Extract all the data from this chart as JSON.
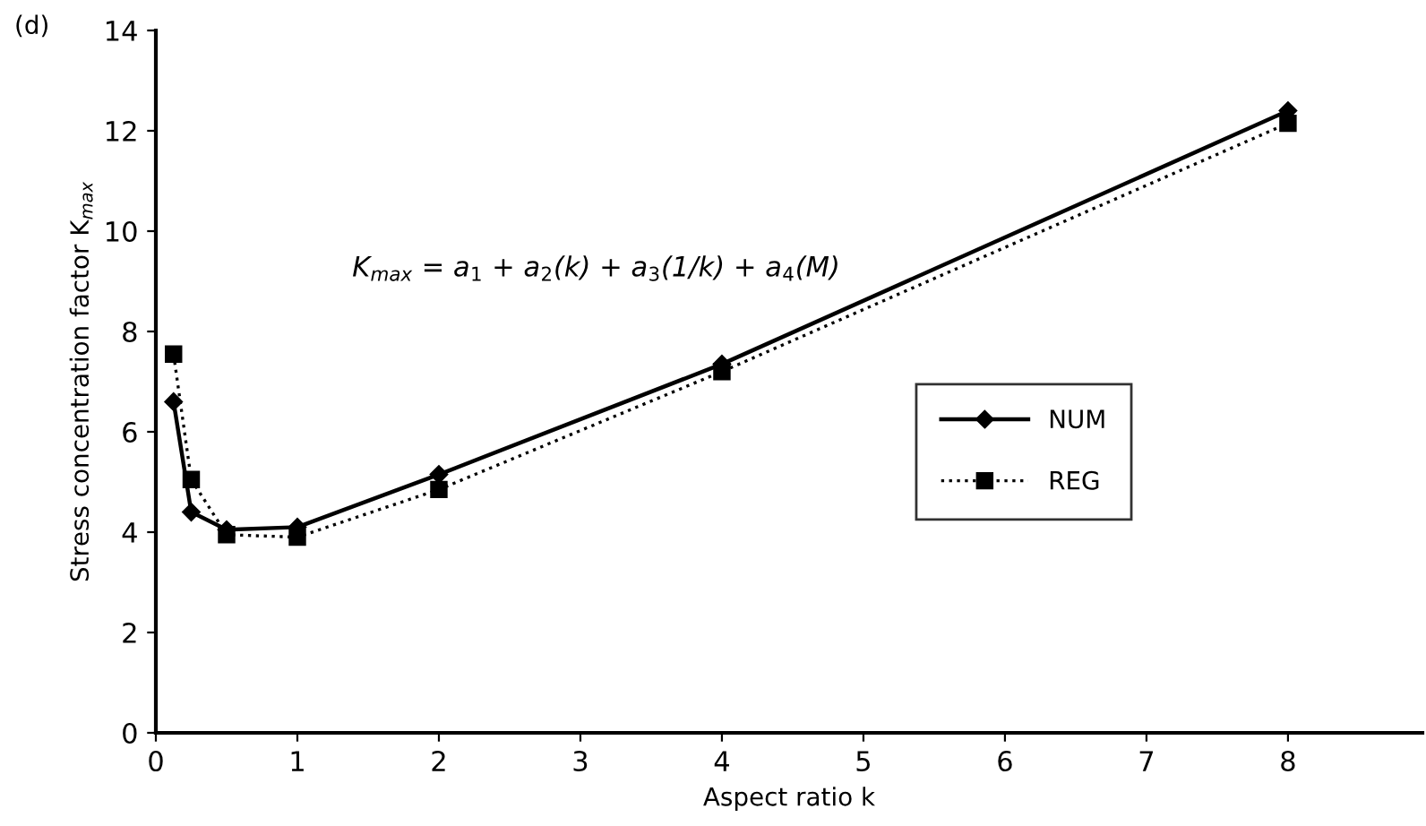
{
  "chart_data": {
    "type": "line",
    "xlabel": "Aspect ratio k",
    "ylabel": "Stress concentration factor K$_{max}$",
    "annotations": [
      "(d)",
      "K$_{max}$ = a$_{1}$ + a$_{2}$(k) + a$_{3}$(1/k) + a$_{4}$(M)"
    ],
    "x": [
      0.125,
      0.25,
      0.5,
      1,
      2,
      4,
      8
    ],
    "series": [
      {
        "name": "NUM",
        "color": "#000000",
        "marker": "diamond",
        "line_style": "solid",
        "values": [
          6.6,
          4.4,
          4.05,
          4.1,
          5.15,
          7.35,
          12.4
        ]
      },
      {
        "name": "REG",
        "color": "#000000",
        "marker": "square",
        "line_style": "dotted",
        "values": [
          7.55,
          5.05,
          3.95,
          3.9,
          4.85,
          7.2,
          12.15
        ]
      }
    ],
    "xlim": [
      0,
      8.95
    ],
    "xticks": [
      0,
      1,
      2,
      3,
      4,
      5,
      6,
      7,
      8
    ],
    "ylim": [
      0,
      14
    ],
    "yticks": [
      0,
      2,
      4,
      6,
      8,
      10,
      12,
      14
    ],
    "grid": false,
    "legend": "right"
  }
}
